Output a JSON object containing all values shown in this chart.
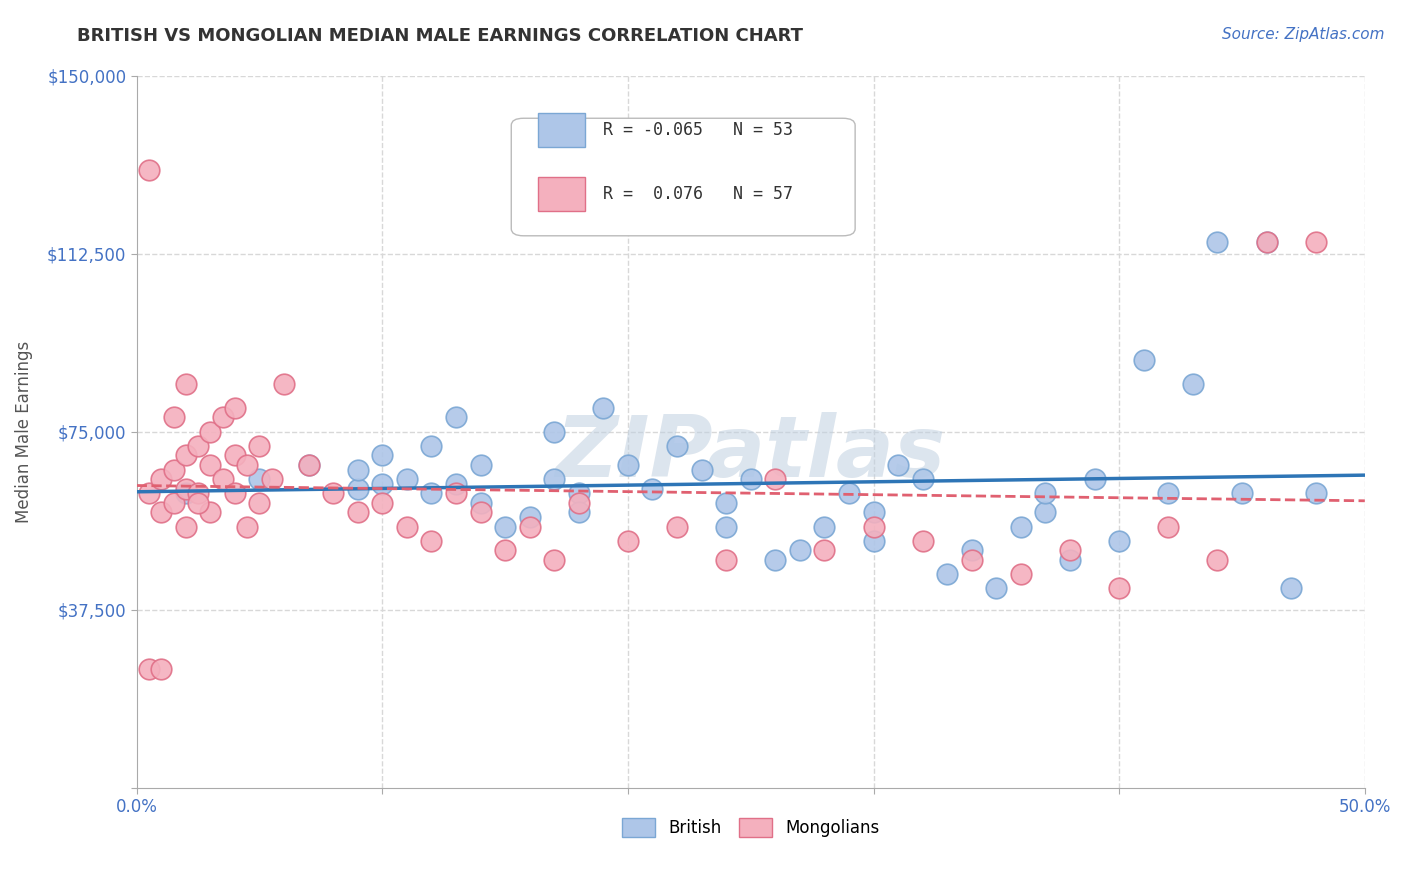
{
  "title": "BRITISH VS MONGOLIAN MEDIAN MALE EARNINGS CORRELATION CHART",
  "source_text": "Source: ZipAtlas.com",
  "ylabel": "Median Male Earnings",
  "xlim": [
    0,
    0.5
  ],
  "ylim": [
    0,
    150000
  ],
  "yticks": [
    0,
    37500,
    75000,
    112500,
    150000
  ],
  "ytick_labels": [
    "",
    "$37,500",
    "$75,000",
    "$112,500",
    "$150,000"
  ],
  "xticks": [
    0,
    0.1,
    0.2,
    0.3,
    0.4,
    0.5
  ],
  "xtick_labels": [
    "0.0%",
    "",
    "",
    "",
    "",
    "50.0%"
  ],
  "background_color": "#ffffff",
  "grid_color": "#d8d8d8",
  "title_color": "#333333",
  "axis_color": "#4472c4",
  "british_color": "#aec6e8",
  "british_edge_color": "#7ba7d4",
  "mongolian_color": "#f4b0be",
  "mongolian_edge_color": "#e07088",
  "british_line_color": "#2e75b6",
  "mongolian_line_color": "#e06070",
  "legend_R_british": "-0.065",
  "legend_N_british": "53",
  "legend_R_mongolian": "0.076",
  "legend_N_mongolian": "57",
  "watermark_text": "ZIPatlas",
  "watermark_color": "#c0d0e0",
  "british_x": [
    0.02,
    0.05,
    0.07,
    0.09,
    0.09,
    0.1,
    0.1,
    0.11,
    0.12,
    0.12,
    0.13,
    0.13,
    0.14,
    0.14,
    0.15,
    0.16,
    0.17,
    0.17,
    0.18,
    0.18,
    0.19,
    0.2,
    0.21,
    0.22,
    0.23,
    0.24,
    0.24,
    0.25,
    0.26,
    0.27,
    0.28,
    0.29,
    0.3,
    0.3,
    0.31,
    0.32,
    0.33,
    0.34,
    0.35,
    0.36,
    0.37,
    0.37,
    0.38,
    0.39,
    0.4,
    0.41,
    0.42,
    0.43,
    0.44,
    0.45,
    0.46,
    0.47,
    0.48
  ],
  "british_y": [
    62000,
    65000,
    68000,
    63000,
    67000,
    64000,
    70000,
    65000,
    72000,
    62000,
    78000,
    64000,
    68000,
    60000,
    55000,
    57000,
    75000,
    65000,
    62000,
    58000,
    80000,
    68000,
    63000,
    72000,
    67000,
    60000,
    55000,
    65000,
    48000,
    50000,
    55000,
    62000,
    58000,
    52000,
    68000,
    65000,
    45000,
    50000,
    42000,
    55000,
    58000,
    62000,
    48000,
    65000,
    52000,
    90000,
    62000,
    85000,
    115000,
    62000,
    115000,
    42000,
    62000
  ],
  "mongolian_x": [
    0.005,
    0.01,
    0.01,
    0.015,
    0.015,
    0.02,
    0.02,
    0.02,
    0.025,
    0.025,
    0.03,
    0.03,
    0.03,
    0.035,
    0.035,
    0.04,
    0.04,
    0.04,
    0.045,
    0.045,
    0.05,
    0.05,
    0.055,
    0.06,
    0.07,
    0.08,
    0.09,
    0.1,
    0.11,
    0.12,
    0.13,
    0.14,
    0.15,
    0.16,
    0.17,
    0.18,
    0.2,
    0.22,
    0.24,
    0.26,
    0.28,
    0.3,
    0.32,
    0.34,
    0.36,
    0.38,
    0.4,
    0.42,
    0.44,
    0.46,
    0.48,
    0.005,
    0.005,
    0.01,
    0.015,
    0.02,
    0.025
  ],
  "mongolian_y": [
    62000,
    58000,
    65000,
    60000,
    67000,
    63000,
    70000,
    55000,
    72000,
    62000,
    75000,
    68000,
    58000,
    78000,
    65000,
    80000,
    62000,
    70000,
    68000,
    55000,
    72000,
    60000,
    65000,
    85000,
    68000,
    62000,
    58000,
    60000,
    55000,
    52000,
    62000,
    58000,
    50000,
    55000,
    48000,
    60000,
    52000,
    55000,
    48000,
    65000,
    50000,
    55000,
    52000,
    48000,
    45000,
    50000,
    42000,
    55000,
    48000,
    115000,
    115000,
    130000,
    25000,
    25000,
    78000,
    85000,
    60000
  ]
}
